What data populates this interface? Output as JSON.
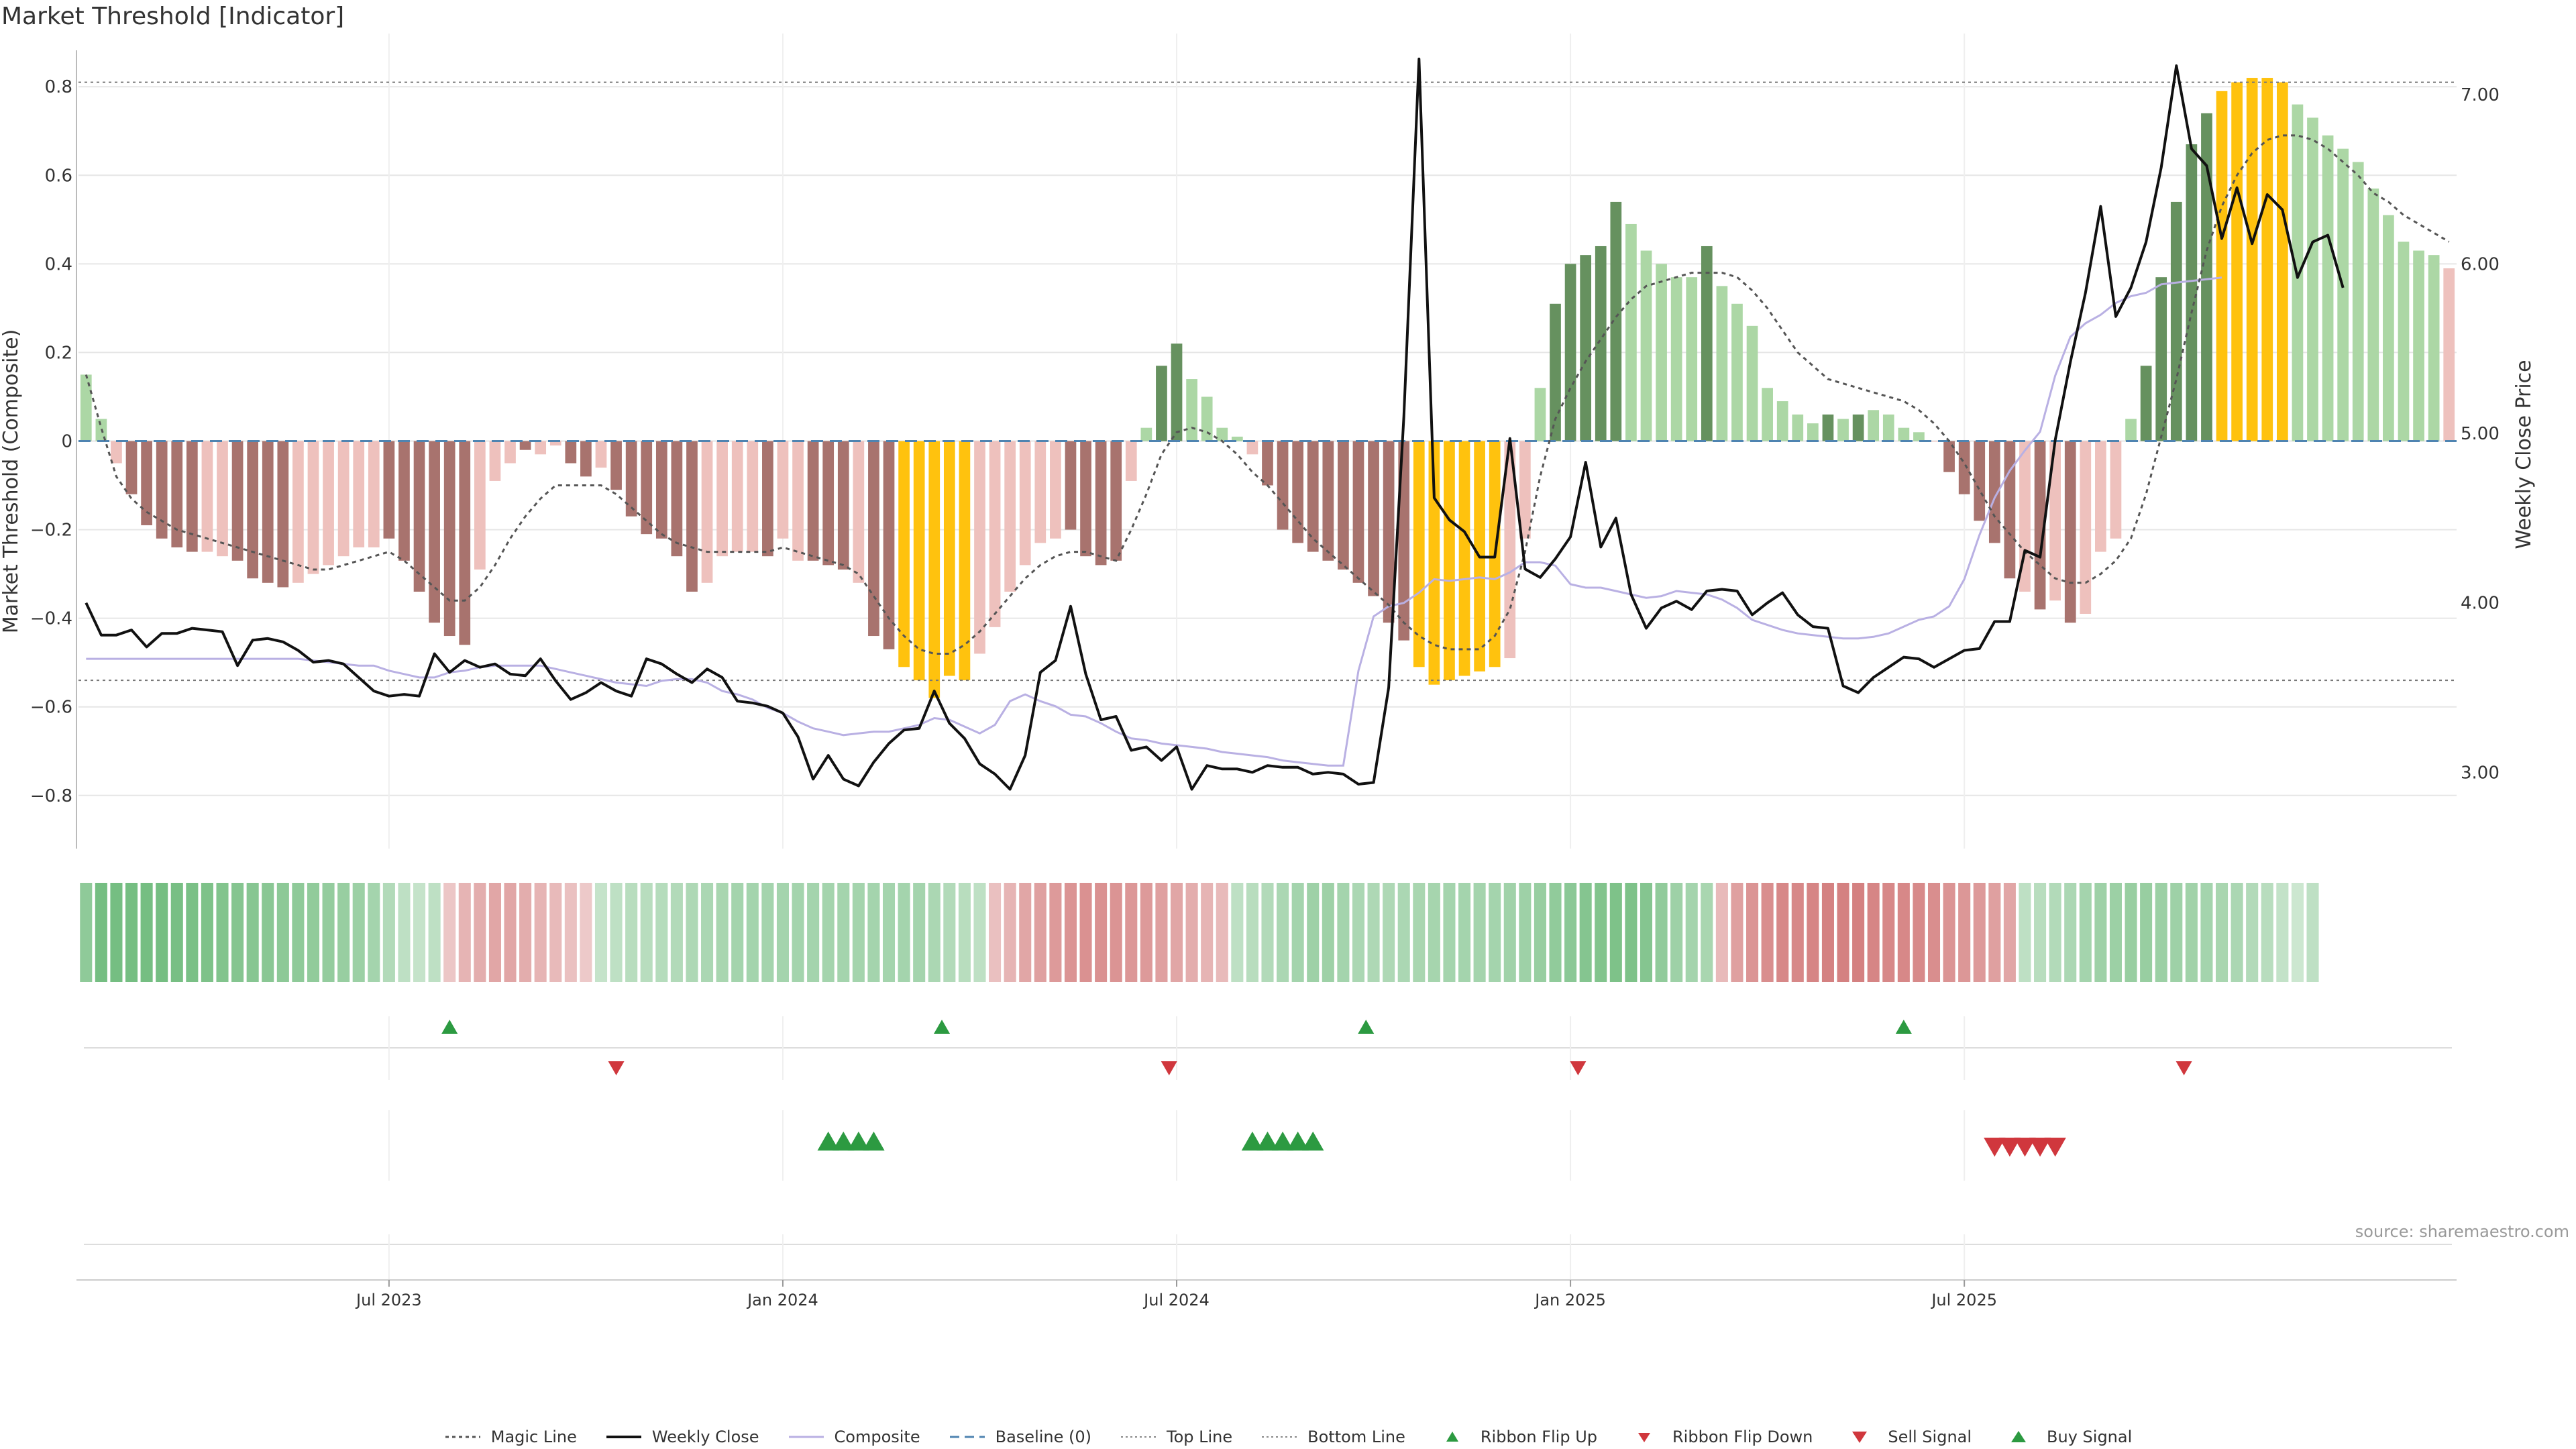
{
  "title": "Market Threshold [Indicator]",
  "source": "source: sharemaestro.com",
  "chart_data": {
    "type": "bar",
    "title": "Market Threshold [Indicator]",
    "ylabel": "Market Threshold (Composite)",
    "y2label": "Weekly Close Price",
    "ylim": [
      -0.92,
      0.92
    ],
    "y2lim": [
      2.55,
      7.36
    ],
    "yticks": [
      "0.8",
      "0.6",
      "0.4",
      "0.2",
      "0",
      "−0.2",
      "−0.4",
      "−0.6",
      "−0.8"
    ],
    "y2ticks": [
      "7.00",
      "6.00",
      "5.00",
      "4.00",
      "3.00"
    ],
    "xticks": [
      {
        "label": "Jul 2023",
        "week": 20.5
      },
      {
        "label": "Jan 2024",
        "week": 46.5
      },
      {
        "label": "Jul 2024",
        "week": 72.5
      },
      {
        "label": "Jan 2025",
        "week": 98.5
      },
      {
        "label": "Jul 2025",
        "week": 124.5
      }
    ],
    "top_line": 0.81,
    "bottom_line": -0.54,
    "baseline": 0,
    "composite": [
      0.15,
      0.05,
      -0.05,
      -0.12,
      -0.19,
      -0.22,
      -0.24,
      -0.25,
      -0.25,
      -0.26,
      -0.27,
      -0.31,
      -0.32,
      -0.33,
      -0.32,
      -0.3,
      -0.28,
      -0.26,
      -0.24,
      -0.24,
      -0.22,
      -0.27,
      -0.34,
      -0.41,
      -0.44,
      -0.46,
      -0.29,
      -0.09,
      -0.05,
      -0.02,
      -0.03,
      -0.01,
      -0.05,
      -0.08,
      -0.06,
      -0.11,
      -0.17,
      -0.21,
      -0.22,
      -0.26,
      -0.34,
      -0.32,
      -0.26,
      -0.25,
      -0.25,
      -0.26,
      -0.22,
      -0.27,
      -0.27,
      -0.28,
      -0.29,
      -0.32,
      -0.44,
      -0.47,
      -0.51,
      -0.54,
      -0.58,
      -0.53,
      -0.54,
      -0.48,
      -0.42,
      -0.34,
      -0.28,
      -0.23,
      -0.22,
      -0.2,
      -0.26,
      -0.28,
      -0.27,
      -0.09,
      0.03,
      0.17,
      0.22,
      0.14,
      0.1,
      0.03,
      0.01,
      -0.03,
      -0.1,
      -0.2,
      -0.23,
      -0.25,
      -0.27,
      -0.29,
      -0.32,
      -0.35,
      -0.41,
      -0.45,
      -0.51,
      -0.55,
      -0.54,
      -0.53,
      -0.52,
      -0.51,
      -0.49,
      -0.22,
      0.12,
      0.31,
      0.4,
      0.42,
      0.44,
      0.54,
      0.49,
      0.43,
      0.4,
      0.37,
      0.37,
      0.44,
      0.35,
      0.31,
      0.26,
      0.12,
      0.09,
      0.06,
      0.04,
      0.06,
      0.05,
      0.06,
      0.07,
      0.06,
      0.03,
      0.02,
      0,
      -0.07,
      -0.12,
      -0.18,
      -0.23,
      -0.31,
      -0.34,
      -0.38,
      -0.36,
      -0.41,
      -0.39,
      -0.25,
      -0.22,
      0.05,
      0.17,
      0.37,
      0.54,
      0.67,
      0.74,
      0.79,
      0.81,
      0.82,
      0.82,
      0.81,
      0.76,
      0.73,
      0.69,
      0.66,
      0.63,
      0.57,
      0.51,
      0.45,
      0.43,
      0.42,
      0.39
    ],
    "bar_colors": [
      "lg",
      "lg",
      "lp",
      "dr",
      "dr",
      "dr",
      "dr",
      "dr",
      "lp",
      "lp",
      "dr",
      "dr",
      "dr",
      "dr",
      "lp",
      "lp",
      "lp",
      "lp",
      "lp",
      "lp",
      "dr",
      "dr",
      "dr",
      "dr",
      "dr",
      "dr",
      "lp",
      "lp",
      "lp",
      "dr",
      "lp",
      "lp",
      "dr",
      "dr",
      "lp",
      "dr",
      "dr",
      "dr",
      "dr",
      "dr",
      "dr",
      "lp",
      "lp",
      "lp",
      "lp",
      "dr",
      "lp",
      "lp",
      "dr",
      "dr",
      "dr",
      "lp",
      "dr",
      "dr",
      "yl",
      "yl",
      "yl",
      "yl",
      "yl",
      "lp",
      "lp",
      "lp",
      "lp",
      "lp",
      "lp",
      "dr",
      "dr",
      "dr",
      "dr",
      "lp",
      "lg",
      "dg",
      "dg",
      "lg",
      "lg",
      "lg",
      "lg",
      "lp",
      "dr",
      "dr",
      "dr",
      "dr",
      "dr",
      "dr",
      "dr",
      "dr",
      "dr",
      "dr",
      "yl",
      "yl",
      "yl",
      "yl",
      "yl",
      "yl",
      "lp",
      "lp",
      "lg",
      "dg",
      "dg",
      "dg",
      "dg",
      "dg",
      "lg",
      "lg",
      "lg",
      "lg",
      "lg",
      "dg",
      "lg",
      "lg",
      "lg",
      "lg",
      "lg",
      "lg",
      "lg",
      "dg",
      "lg",
      "dg",
      "lg",
      "lg",
      "lg",
      "lg",
      "lp",
      "dr",
      "dr",
      "dr",
      "dr",
      "dr",
      "lp",
      "dr",
      "lp",
      "dr",
      "lp",
      "lp",
      "lp",
      "lg",
      "dg",
      "dg",
      "dg",
      "dg",
      "dg",
      "yl",
      "yl",
      "yl",
      "yl",
      "yl",
      "lg",
      "lg",
      "lg",
      "lg",
      "lg",
      "lg",
      "lg",
      "lg",
      "lg",
      "lg"
    ],
    "magic_line": [
      0.15,
      0.03,
      -0.08,
      -0.13,
      -0.16,
      -0.18,
      -0.2,
      -0.21,
      -0.22,
      -0.23,
      -0.24,
      -0.25,
      -0.26,
      -0.27,
      -0.28,
      -0.29,
      -0.29,
      -0.28,
      -0.27,
      -0.26,
      -0.25,
      -0.27,
      -0.3,
      -0.33,
      -0.36,
      -0.36,
      -0.33,
      -0.28,
      -0.22,
      -0.17,
      -0.13,
      -0.1,
      -0.1,
      -0.1,
      -0.1,
      -0.12,
      -0.15,
      -0.18,
      -0.21,
      -0.23,
      -0.24,
      -0.25,
      -0.25,
      -0.25,
      -0.25,
      -0.25,
      -0.24,
      -0.25,
      -0.26,
      -0.27,
      -0.28,
      -0.3,
      -0.35,
      -0.4,
      -0.44,
      -0.47,
      -0.48,
      -0.48,
      -0.46,
      -0.43,
      -0.39,
      -0.35,
      -0.31,
      -0.28,
      -0.26,
      -0.25,
      -0.25,
      -0.26,
      -0.27,
      -0.2,
      -0.12,
      -0.03,
      0.02,
      0.03,
      0.02,
      0.0,
      -0.03,
      -0.07,
      -0.1,
      -0.14,
      -0.18,
      -0.22,
      -0.25,
      -0.28,
      -0.31,
      -0.34,
      -0.37,
      -0.41,
      -0.44,
      -0.46,
      -0.47,
      -0.47,
      -0.47,
      -0.44,
      -0.38,
      -0.25,
      -0.08,
      0.05,
      0.12,
      0.18,
      0.23,
      0.28,
      0.32,
      0.35,
      0.36,
      0.37,
      0.38,
      0.38,
      0.38,
      0.37,
      0.34,
      0.3,
      0.25,
      0.2,
      0.17,
      0.14,
      0.13,
      0.12,
      0.11,
      0.1,
      0.09,
      0.07,
      0.04,
      0.0,
      -0.05,
      -0.11,
      -0.17,
      -0.21,
      -0.25,
      -0.28,
      -0.31,
      -0.32,
      -0.32,
      -0.3,
      -0.27,
      -0.22,
      -0.12,
      0.01,
      0.14,
      0.29,
      0.43,
      0.53,
      0.6,
      0.65,
      0.68,
      0.69,
      0.69,
      0.68,
      0.66,
      0.63,
      0.6,
      0.56,
      0.54,
      0.51,
      0.49,
      0.47,
      0.45
    ],
    "weekly_close": [
      4.0,
      3.81,
      3.81,
      3.84,
      3.74,
      3.82,
      3.82,
      3.85,
      3.84,
      3.83,
      3.63,
      3.78,
      3.79,
      3.77,
      3.72,
      3.65,
      3.66,
      3.64,
      3.56,
      3.48,
      3.45,
      3.46,
      3.45,
      3.7,
      3.59,
      3.66,
      3.62,
      3.64,
      3.58,
      3.57,
      3.67,
      3.54,
      3.43,
      3.47,
      3.53,
      3.48,
      3.45,
      3.67,
      3.64,
      3.58,
      3.53,
      3.61,
      3.56,
      3.42,
      3.41,
      3.39,
      3.35,
      3.21,
      2.96,
      3.1,
      2.96,
      2.92,
      3.06,
      3.17,
      3.25,
      3.26,
      3.48,
      3.29,
      3.2,
      3.05,
      2.99,
      2.9,
      3.1,
      3.59,
      3.66,
      3.98,
      3.58,
      3.31,
      3.33,
      3.13,
      3.15,
      3.07,
      3.15,
      2.9,
      3.04,
      3.02,
      3.02,
      3.0,
      3.04,
      3.03,
      3.03,
      2.99,
      3.0,
      2.99,
      2.93,
      2.94,
      3.5,
      5.1,
      7.21,
      4.62,
      4.49,
      4.42,
      4.27,
      4.27,
      4.97,
      4.2,
      4.15,
      4.26,
      4.39,
      4.83,
      4.33,
      4.5,
      4.05,
      3.85,
      3.97,
      4.01,
      3.96,
      4.07,
      4.08,
      4.07,
      3.93,
      4.0,
      4.06,
      3.93,
      3.86,
      3.85,
      3.51,
      3.47,
      3.56,
      3.62,
      3.68,
      3.67,
      3.62,
      3.67,
      3.72,
      3.73,
      3.89,
      3.89,
      4.31,
      4.27,
      4.96,
      5.42,
      5.83,
      6.34,
      5.69,
      5.86,
      6.13,
      6.57,
      7.17,
      6.68,
      6.58,
      6.15,
      6.45,
      6.12,
      6.41,
      6.32,
      5.92,
      6.13,
      6.17,
      5.86
    ],
    "composite_line": [
      3.67,
      3.67,
      3.67,
      3.67,
      3.67,
      3.67,
      3.67,
      3.67,
      3.67,
      3.67,
      3.67,
      3.67,
      3.67,
      3.67,
      3.67,
      3.66,
      3.65,
      3.64,
      3.63,
      3.63,
      3.6,
      3.58,
      3.56,
      3.56,
      3.59,
      3.6,
      3.62,
      3.63,
      3.63,
      3.63,
      3.63,
      3.61,
      3.59,
      3.57,
      3.55,
      3.53,
      3.52,
      3.51,
      3.54,
      3.55,
      3.55,
      3.53,
      3.48,
      3.46,
      3.43,
      3.38,
      3.35,
      3.3,
      3.26,
      3.24,
      3.22,
      3.23,
      3.24,
      3.24,
      3.26,
      3.28,
      3.32,
      3.31,
      3.27,
      3.23,
      3.28,
      3.42,
      3.46,
      3.42,
      3.39,
      3.34,
      3.33,
      3.29,
      3.24,
      3.2,
      3.19,
      3.17,
      3.16,
      3.15,
      3.14,
      3.12,
      3.11,
      3.1,
      3.09,
      3.07,
      3.06,
      3.05,
      3.04,
      3.04,
      3.6,
      3.92,
      3.98,
      4.0,
      4.06,
      4.14,
      4.13,
      4.14,
      4.15,
      4.14,
      4.18,
      4.24,
      4.24,
      4.22,
      4.11,
      4.09,
      4.09,
      4.07,
      4.05,
      4.03,
      4.04,
      4.07,
      4.06,
      4.05,
      4.02,
      3.97,
      3.9,
      3.87,
      3.84,
      3.82,
      3.81,
      3.8,
      3.79,
      3.79,
      3.8,
      3.82,
      3.86,
      3.9,
      3.92,
      3.98,
      4.14,
      4.4,
      4.62,
      4.78,
      4.9,
      5.01,
      5.34,
      5.57,
      5.65,
      5.7,
      5.77,
      5.81,
      5.83,
      5.88,
      5.89,
      5.9,
      5.91,
      5.92
    ],
    "ribbon": [
      0.62,
      0.82,
      0.82,
      0.82,
      0.82,
      0.82,
      0.8,
      0.78,
      0.75,
      0.72,
      0.7,
      0.68,
      0.66,
      0.64,
      0.62,
      0.6,
      0.58,
      0.55,
      0.52,
      0.45,
      0.35,
      0.25,
      0.2,
      0.25,
      -0.2,
      -0.35,
      -0.4,
      -0.45,
      -0.45,
      -0.4,
      -0.35,
      -0.3,
      -0.25,
      -0.18,
      0.2,
      0.25,
      0.3,
      0.3,
      0.32,
      0.35,
      0.38,
      0.4,
      0.42,
      0.45,
      0.45,
      0.45,
      0.45,
      0.45,
      0.45,
      0.45,
      0.45,
      0.45,
      0.45,
      0.45,
      0.45,
      0.45,
      0.4,
      0.35,
      0.3,
      0.25,
      -0.25,
      -0.35,
      -0.45,
      -0.5,
      -0.55,
      -0.6,
      -0.62,
      -0.62,
      -0.6,
      -0.58,
      -0.55,
      -0.5,
      -0.45,
      -0.4,
      -0.35,
      -0.3,
      0.25,
      0.3,
      0.35,
      0.4,
      0.45,
      0.5,
      0.5,
      0.45,
      0.4,
      0.38,
      0.38,
      0.4,
      0.42,
      0.44,
      0.45,
      0.45,
      0.45,
      0.45,
      0.48,
      0.5,
      0.55,
      0.6,
      0.65,
      0.7,
      0.72,
      0.75,
      0.75,
      0.7,
      0.6,
      0.5,
      0.45,
      0.42,
      -0.3,
      -0.5,
      -0.6,
      -0.65,
      -0.7,
      -0.7,
      -0.72,
      -0.75,
      -0.75,
      -0.75,
      -0.72,
      -0.7,
      -0.7,
      -0.68,
      -0.65,
      -0.6,
      -0.58,
      -0.55,
      -0.5,
      -0.45,
      0.25,
      0.3,
      0.35,
      0.4,
      0.45,
      0.5,
      0.52,
      0.55,
      0.55,
      0.52,
      0.5,
      0.48,
      0.45,
      0.42,
      0.4,
      0.35,
      0.3,
      0.22,
      0.15,
      0.25
    ],
    "ribbon_flip_up": [
      24.5,
      57,
      85,
      120.5
    ],
    "ribbon_flip_down": [
      35.5,
      72,
      99,
      139
    ],
    "buy_signal": [
      49.5,
      50.5,
      51.5,
      52.5,
      77.5,
      78.5,
      79.5,
      80.5,
      81.5
    ],
    "sell_signal": [
      126.5,
      127.5,
      128.5,
      129.5,
      130.5
    ],
    "legend": [
      "Magic Line",
      "Weekly Close",
      "Composite",
      "Baseline (0)",
      "Top Line",
      "Bottom Line",
      "Ribbon Flip Up",
      "Ribbon Flip Down",
      "Sell Signal",
      "Buy Signal"
    ],
    "colors": {
      "dark_red": "#a8736e",
      "light_pink": "#eec1bd",
      "light_green": "#acd7a5",
      "dark_green": "#66915f",
      "yellow": "#ffc20e",
      "close": "#111111",
      "composite": "#b9b0e3",
      "magic": "#555555",
      "baseline": "#4f84b1",
      "buy": "#2c9a41",
      "sell": "#d0373d",
      "grid": "#e6e6e6"
    }
  }
}
